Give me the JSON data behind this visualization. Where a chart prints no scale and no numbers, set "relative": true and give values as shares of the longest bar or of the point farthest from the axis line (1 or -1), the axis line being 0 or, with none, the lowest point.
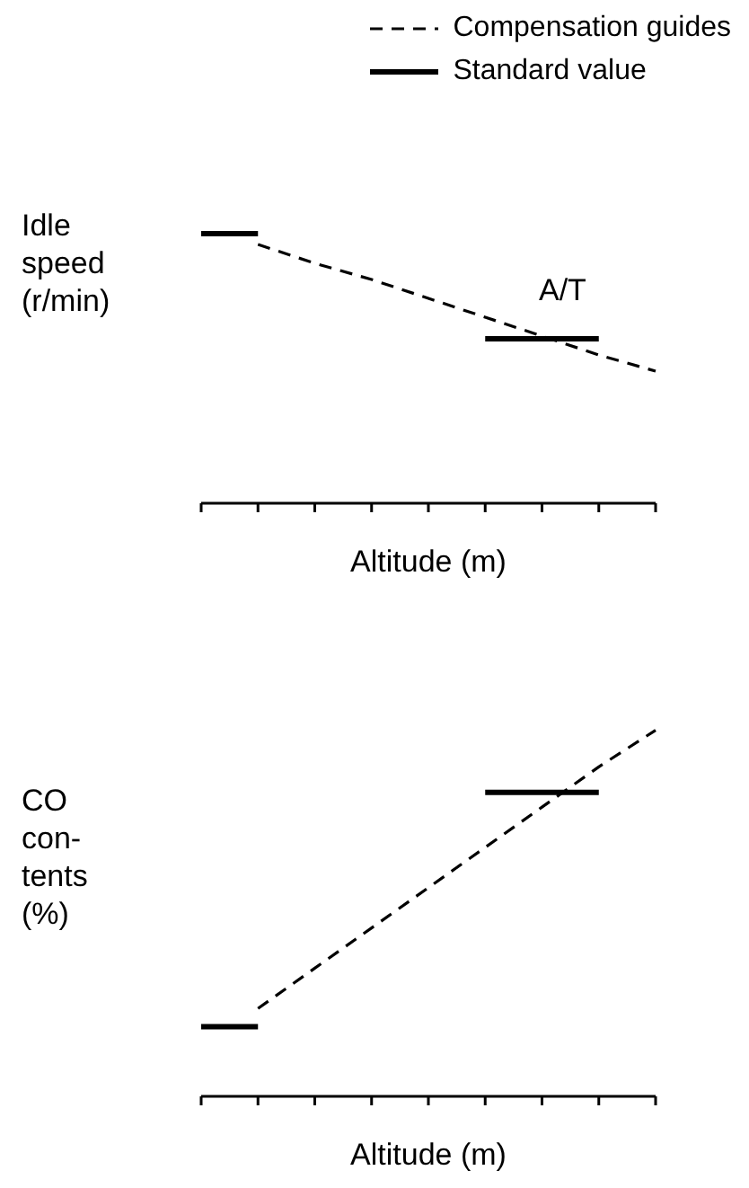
{
  "chart_data": [
    {
      "type": "line",
      "relative": true,
      "ylabel": "Idle\nspeed\n(r/min)",
      "xlabel": "Altitude (m)",
      "categories": [
        null,
        null,
        null,
        null,
        null,
        null,
        null,
        null,
        null
      ],
      "legend": "top right",
      "marker": "none",
      "annotations": [
        "A/T"
      ],
      "series": [
        {
          "name": "Compensation guides",
          "color": "#000000",
          "line_style": "dashed",
          "values": [
            null,
            0.96,
            0.89,
            0.83,
            0.76,
            0.69,
            0.62,
            0.55,
            0.49
          ]
        },
        {
          "name": "Standard value",
          "color": "#000000",
          "line_style": "solid",
          "values": [
            1,
            1,
            null,
            null,
            null,
            0.61,
            0.61,
            0.61,
            null
          ]
        }
      ]
    },
    {
      "type": "line",
      "relative": true,
      "ylabel": "CO\ncon-\ntents\n(%)",
      "xlabel": "Altitude (m)",
      "categories": [
        null,
        null,
        null,
        null,
        null,
        null,
        null,
        null,
        null
      ],
      "marker": "none",
      "series": [
        {
          "color": "#000000",
          "line_style": "dashed",
          "values": [
            null,
            0.24,
            0.35,
            0.46,
            0.57,
            0.68,
            0.79,
            0.9,
            1
          ]
        },
        {
          "color": "#000000",
          "line_style": "solid",
          "values": [
            0.19,
            0.19,
            null,
            null,
            null,
            0.83,
            0.83,
            0.83,
            null
          ]
        }
      ]
    }
  ]
}
